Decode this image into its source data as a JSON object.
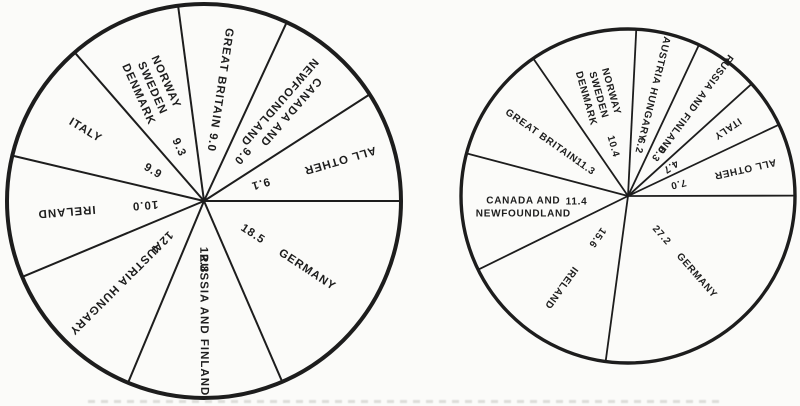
{
  "page": {
    "background": "#fbfbf9",
    "ink": "#1d1d1d"
  },
  "chart_data": [
    {
      "type": "pie",
      "id": "left",
      "title": "",
      "unit": "percent",
      "legend": "none",
      "grid": false,
      "center": [
        204,
        201
      ],
      "radius": 197,
      "start_angle_cw_from_top": -7.56,
      "ring_stroke": 4,
      "line_stroke": 2,
      "font_size": 11.5,
      "letter_spacing": 1,
      "line_gap": 15,
      "name_r": 0.63,
      "value_r": 0.3,
      "slices": [
        {
          "name": "GREAT BRITAIN",
          "lines": [
            "GREAT BRITAIN"
          ],
          "value": 9.0,
          "label": "9.0"
        },
        {
          "name": "CANADA AND NEWFOUNDLAND",
          "lines": [
            "CANADA AND",
            "NEWFOUNDLAND"
          ],
          "value": 9.0,
          "label": "9.0"
        },
        {
          "name": "ALL OTHER",
          "lines": [
            "ALL OTHER"
          ],
          "value": 9.1,
          "label": "9.1",
          "name_r": 0.72
        },
        {
          "name": "GERMANY",
          "lines": [
            "GERMANY"
          ],
          "value": 18.5,
          "label": "18.5"
        },
        {
          "name": "RUSSIA AND FINLAND",
          "lines": [
            "RUSSIA AND FINLAND"
          ],
          "value": 12.8,
          "label": "12.8"
        },
        {
          "name": "AUSTRIA HUNGARY",
          "lines": [
            "AUSTRIA HUNGARY"
          ],
          "value": 12.4,
          "label": "12.4"
        },
        {
          "name": "IRELAND",
          "lines": [
            "IRELAND"
          ],
          "value": 10.0,
          "label": "10.0",
          "name_r": 0.7
        },
        {
          "name": "ITALY",
          "lines": [
            "ITALY"
          ],
          "value": 9.9,
          "label": "9.9",
          "name_r": 0.7
        },
        {
          "name": "NORWAY SWEDEN DENMARK",
          "lines": [
            "NORWAY",
            "SWEDEN",
            "DENMARK"
          ],
          "value": 9.3,
          "label": "9.3"
        }
      ]
    },
    {
      "type": "pie",
      "id": "right",
      "title": "",
      "unit": "percent",
      "legend": "none",
      "grid": false,
      "center": [
        628,
        196
      ],
      "radius": 167,
      "start_angle_cw_from_top": -34.56,
      "ring_stroke": 3.4,
      "line_stroke": 1.8,
      "font_size": 10,
      "letter_spacing": 0.7,
      "line_gap": 13,
      "name_r": 0.63,
      "value_r": 0.31,
      "slices": [
        {
          "name": "NORWAY SWEDEN DENMARK",
          "lines": [
            "NORWAY",
            "SWEDEN",
            "DENMARK"
          ],
          "value": 10.4,
          "label": "10.4"
        },
        {
          "name": "AUSTRIA HUNGARY",
          "lines": [
            "AUSTRIA HUNGARY"
          ],
          "value": 6.2,
          "label": "6.2",
          "name_r": 0.66
        },
        {
          "name": "RUSSIA AND FINLAND",
          "lines": [
            "RUSSIA AND FINLAND"
          ],
          "value": 6.3,
          "label": "6.3",
          "name_r": 0.68
        },
        {
          "name": "ITALY",
          "lines": [
            "ITALY"
          ],
          "value": 4.7,
          "label": "4.7",
          "name_r": 0.72
        },
        {
          "name": "ALL OTHER",
          "lines": [
            "ALL OTHER"
          ],
          "value": 7.0,
          "label": "7.0",
          "name_r": 0.72
        },
        {
          "name": "GERMANY",
          "lines": [
            "GERMANY"
          ],
          "value": 27.2,
          "label": "27.2"
        },
        {
          "name": "IRELAND",
          "lines": [
            "IRELAND"
          ],
          "value": 15.6,
          "label": "15.6",
          "name_r": 0.68
        },
        {
          "name": "CANADA AND NEWFOUNDLAND",
          "lines": [
            "CANADA AND",
            "NEWFOUNDLAND"
          ],
          "value": 11.4,
          "label": "11.4",
          "horizontal": true
        },
        {
          "name": "GREAT BRITAIN",
          "lines": [
            "GREAT BRITAIN"
          ],
          "value": 11.3,
          "label": "11.3"
        }
      ]
    }
  ]
}
